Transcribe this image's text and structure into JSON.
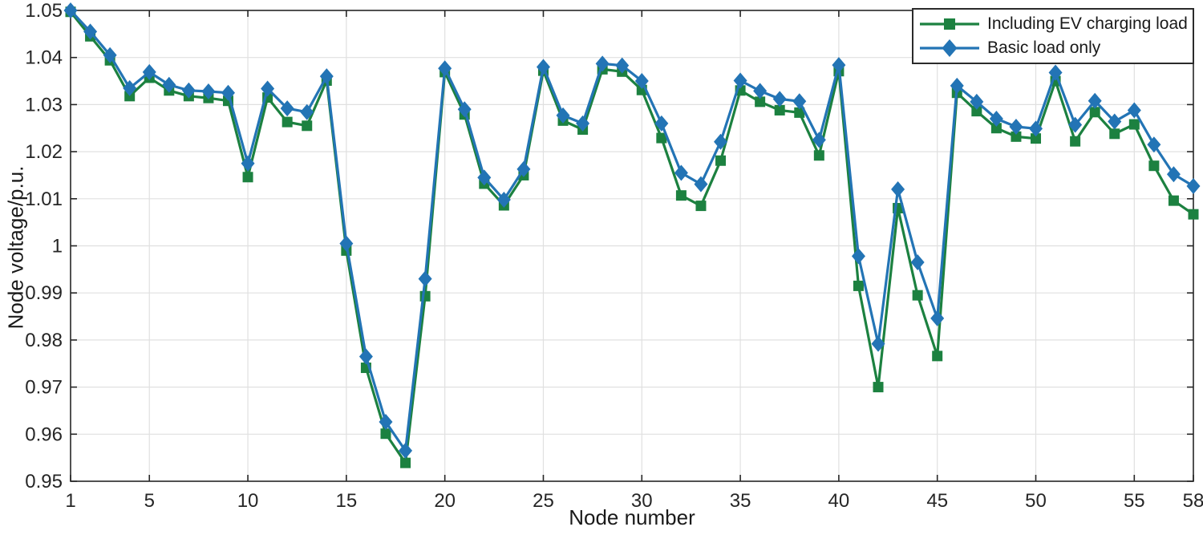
{
  "chart_data": {
    "type": "line",
    "title": "",
    "xlabel": "Node number",
    "ylabel": "Node voltage/p.u.",
    "xlim": [
      1,
      58
    ],
    "ylim": [
      0.95,
      1.05
    ],
    "xticks": [
      1,
      5,
      10,
      15,
      20,
      25,
      30,
      35,
      40,
      45,
      50,
      55,
      58
    ],
    "yticks": [
      0.95,
      0.96,
      0.97,
      0.98,
      0.99,
      1.0,
      1.01,
      1.02,
      1.03,
      1.04,
      1.05
    ],
    "ytick_labels": [
      "0.95",
      "0.96",
      "0.97",
      "0.98",
      "0.99",
      "1",
      "1.01",
      "1.02",
      "1.03",
      "1.04",
      "1.05"
    ],
    "grid": true,
    "legend_position": "top-right",
    "x": [
      1,
      2,
      3,
      4,
      5,
      6,
      7,
      8,
      9,
      10,
      11,
      12,
      13,
      14,
      15,
      16,
      17,
      18,
      19,
      20,
      21,
      22,
      23,
      24,
      25,
      26,
      27,
      28,
      29,
      30,
      31,
      32,
      33,
      34,
      35,
      36,
      37,
      38,
      39,
      40,
      41,
      42,
      43,
      44,
      45,
      46,
      47,
      48,
      49,
      50,
      51,
      52,
      53,
      54,
      55,
      56,
      57,
      58
    ],
    "series": [
      {
        "name": "Including EV charging load",
        "marker": "square",
        "color": "#1C8140",
        "values": [
          1.0497,
          1.0445,
          1.0394,
          1.0318,
          1.0357,
          1.033,
          1.0318,
          1.0314,
          1.0308,
          1.0146,
          1.0315,
          1.0263,
          1.0255,
          1.0351,
          0.999,
          0.9741,
          0.9601,
          0.9539,
          0.9893,
          1.0369,
          1.0279,
          1.0132,
          1.0086,
          1.015,
          1.0372,
          1.0266,
          1.0247,
          1.0375,
          1.037,
          1.0331,
          1.0229,
          1.0107,
          1.0085,
          1.0181,
          1.033,
          1.0306,
          1.0288,
          1.0283,
          1.0192,
          1.0371,
          0.9915,
          0.97,
          1.008,
          0.9895,
          0.9766,
          1.0325,
          1.0286,
          1.025,
          1.0232,
          1.0228,
          1.035,
          1.0222,
          1.0284,
          1.0238,
          1.0258,
          1.017,
          1.0096,
          1.0067
        ]
      },
      {
        "name": "Basic load only",
        "marker": "diamond",
        "color": "#2374B5",
        "values": [
          1.05,
          1.0455,
          1.0405,
          1.0335,
          1.0369,
          1.0342,
          1.033,
          1.0328,
          1.0325,
          1.0175,
          1.0334,
          1.0292,
          1.0284,
          1.036,
          1.0005,
          0.9765,
          0.9626,
          0.9565,
          0.993,
          1.0377,
          1.029,
          1.0145,
          1.0098,
          1.0163,
          1.038,
          1.0277,
          1.026,
          1.0387,
          1.0383,
          1.035,
          1.026,
          1.0155,
          1.0131,
          1.0221,
          1.0351,
          1.0329,
          1.0312,
          1.0307,
          1.0225,
          1.0384,
          0.9978,
          0.9792,
          1.012,
          0.9965,
          0.9846,
          1.034,
          1.0306,
          1.027,
          1.0253,
          1.0249,
          1.0368,
          1.0257,
          1.0308,
          1.0264,
          1.0288,
          1.0215,
          1.0152,
          1.0127
        ]
      }
    ]
  }
}
